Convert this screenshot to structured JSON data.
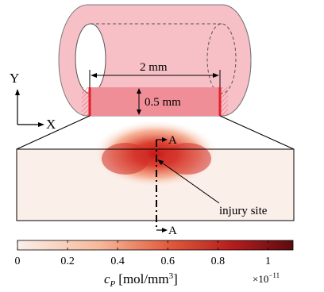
{
  "axes": {
    "y_label": "Y",
    "x_label": "X"
  },
  "vessel": {
    "length_label": "2 mm",
    "thickness_label": "0.5 mm",
    "wall_color": "#f7c0c6",
    "section_color": "#f08e98",
    "edge_color": "#e0212b"
  },
  "section": {
    "marker_top": "A",
    "marker_bottom": "A",
    "annotation": "injury site"
  },
  "colorbar": {
    "ticks": [
      "0",
      "0.2",
      "0.4",
      "0.6",
      "0.8",
      "1"
    ],
    "tick_values": [
      0,
      0.2,
      0.4,
      0.6,
      0.8,
      1
    ],
    "min": 0,
    "max": 1.1,
    "label_symbol": "c",
    "label_subscript": "P",
    "label_units": "[mol/mm",
    "label_units_exp": "3",
    "label_units_close": "]",
    "multiplier_base": "×10",
    "multiplier_exp": "−11",
    "colors": [
      "#fbefea",
      "#f6b89a",
      "#e25a3c",
      "#b51d1d",
      "#5c0b10"
    ]
  }
}
